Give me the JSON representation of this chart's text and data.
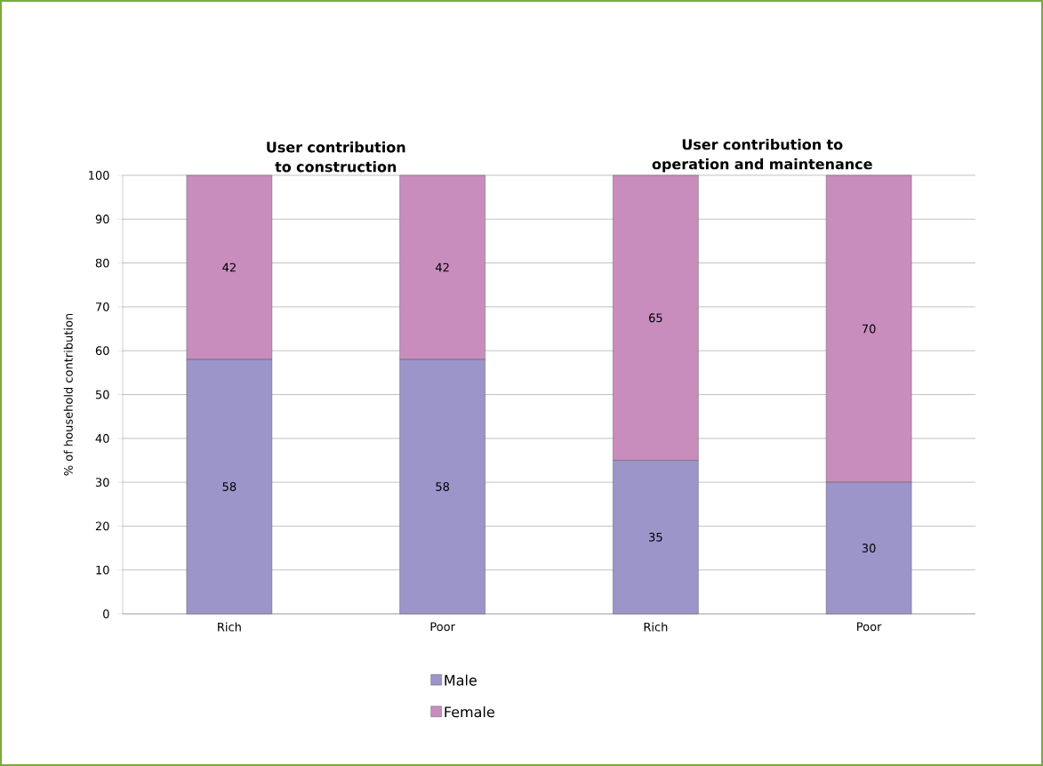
{
  "chart_data": {
    "type": "bar",
    "stacked": true,
    "categories": [
      "Rich",
      "Poor",
      "Rich",
      "Poor"
    ],
    "series": [
      {
        "name": "Male",
        "color": "#9b95c9",
        "values": [
          58,
          58,
          35,
          30
        ]
      },
      {
        "name": "Female",
        "color": "#c88dbd",
        "values": [
          42,
          42,
          65,
          70
        ]
      }
    ],
    "annotations": [
      "User contribution to construction",
      "User contribution to operation and maintenance"
    ],
    "ylabel": "% of household contribution",
    "ylim": [
      0,
      100
    ],
    "yticks": [
      0,
      10,
      20,
      30,
      40,
      50,
      60,
      70,
      80,
      90,
      100
    ],
    "grid": "y",
    "legend": "bottom",
    "data_labels": true
  }
}
